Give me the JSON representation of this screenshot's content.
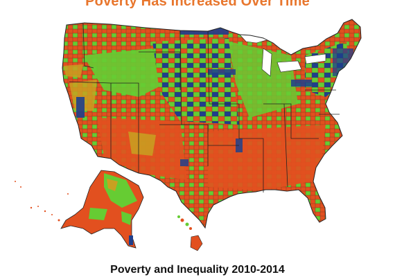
{
  "title": "Poverty Has Increased Over Time",
  "subtitle": "Poverty and Inequality 2010-2014",
  "colors": {
    "title": "#e8762d",
    "red_orange": "#e2501f",
    "green": "#66cc33",
    "dark_blue": "#1f3f8c",
    "mustard": "#c9a021",
    "county_border": "#5a3a20",
    "state_border": "#222222",
    "lakes": "#ffffff"
  },
  "legend_categories": [
    "red-orange",
    "green",
    "dark-blue",
    "mustard"
  ]
}
